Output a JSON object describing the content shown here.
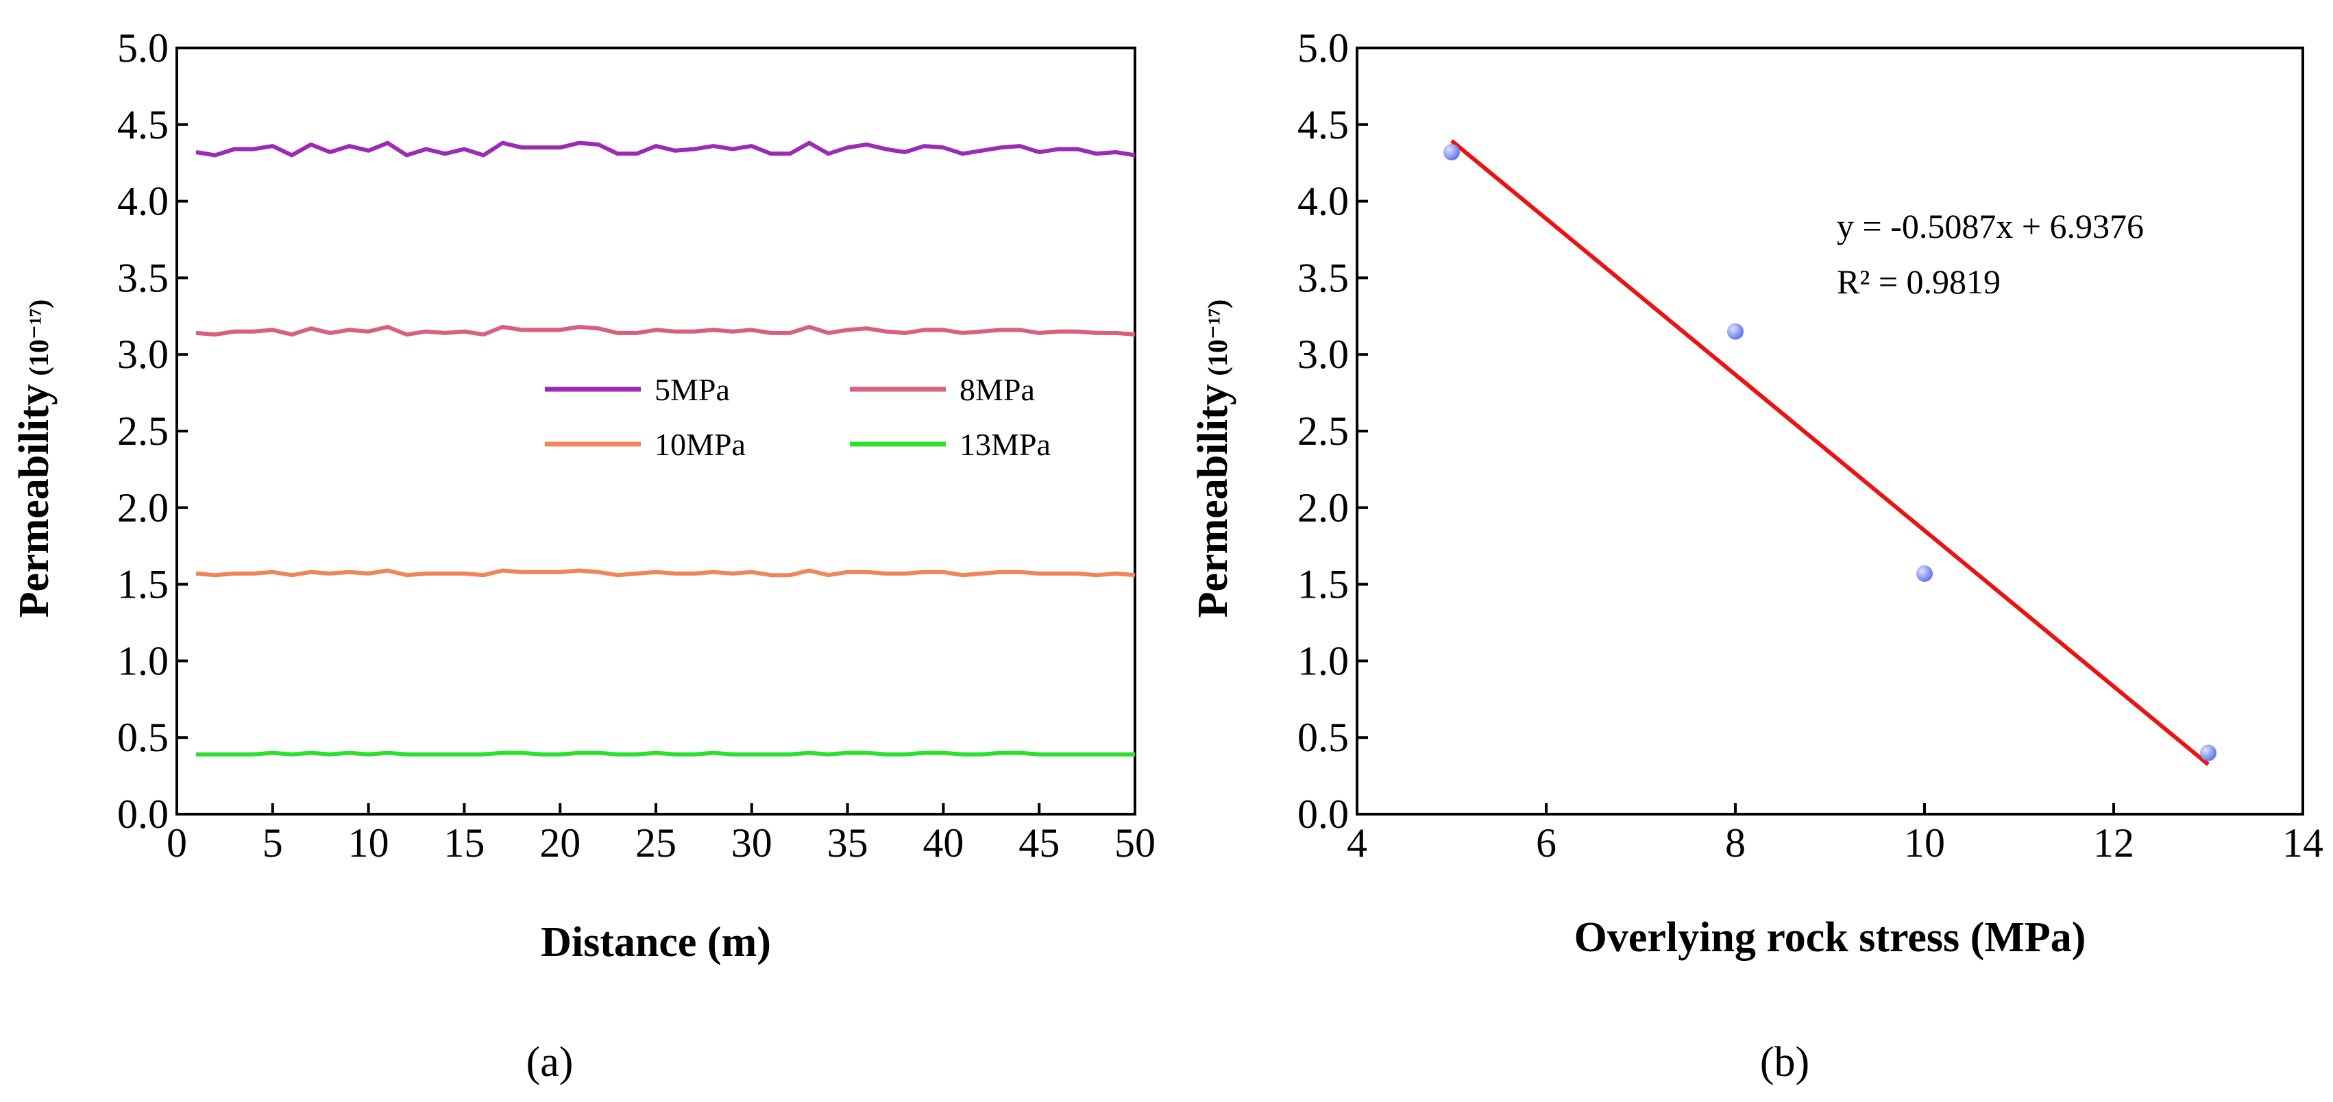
{
  "panels": [
    {
      "label": "(a)"
    },
    {
      "label": "(b)"
    }
  ],
  "chart_data": [
    {
      "type": "line",
      "panel": "a",
      "xlabel": "Distance (m)",
      "ylabel": "Permeability",
      "yunit": "(10⁻¹⁷)",
      "xlim": [
        0,
        50
      ],
      "ylim": [
        0,
        5
      ],
      "xticks": [
        "0",
        "5",
        "10",
        "15",
        "20",
        "25",
        "30",
        "35",
        "40",
        "45",
        "50"
      ],
      "yticks": [
        "0.0",
        "0.5",
        "1.0",
        "1.5",
        "2.0",
        "2.5",
        "3.0",
        "3.5",
        "4.0",
        "4.5",
        "5.0"
      ],
      "x": [
        1,
        2,
        3,
        4,
        5,
        6,
        7,
        8,
        9,
        10,
        11,
        12,
        13,
        14,
        15,
        16,
        17,
        18,
        19,
        20,
        21,
        22,
        23,
        24,
        25,
        26,
        27,
        28,
        29,
        30,
        31,
        32,
        33,
        34,
        35,
        36,
        37,
        38,
        39,
        40,
        41,
        42,
        43,
        44,
        45,
        46,
        47,
        48,
        49,
        50
      ],
      "series": [
        {
          "name": "5MPa",
          "color": "#9b2bb5",
          "values": [
            4.32,
            4.3,
            4.34,
            4.34,
            4.36,
            4.3,
            4.37,
            4.32,
            4.36,
            4.33,
            4.38,
            4.3,
            4.34,
            4.31,
            4.34,
            4.3,
            4.38,
            4.35,
            4.35,
            4.35,
            4.38,
            4.37,
            4.31,
            4.31,
            4.36,
            4.33,
            4.34,
            4.36,
            4.34,
            4.36,
            4.31,
            4.31,
            4.38,
            4.31,
            4.35,
            4.37,
            4.34,
            4.32,
            4.36,
            4.35,
            4.31,
            4.33,
            4.35,
            4.36,
            4.32,
            4.34,
            4.34,
            4.31,
            4.32,
            4.3
          ]
        },
        {
          "name": "8MPa",
          "color": "#d9607a",
          "values": [
            3.14,
            3.13,
            3.15,
            3.15,
            3.16,
            3.13,
            3.17,
            3.14,
            3.16,
            3.15,
            3.18,
            3.13,
            3.15,
            3.14,
            3.15,
            3.13,
            3.18,
            3.16,
            3.16,
            3.16,
            3.18,
            3.17,
            3.14,
            3.14,
            3.16,
            3.15,
            3.15,
            3.16,
            3.15,
            3.16,
            3.14,
            3.14,
            3.18,
            3.14,
            3.16,
            3.17,
            3.15,
            3.14,
            3.16,
            3.16,
            3.14,
            3.15,
            3.16,
            3.16,
            3.14,
            3.15,
            3.15,
            3.14,
            3.14,
            3.13
          ]
        },
        {
          "name": "10MPa",
          "color": "#f0845a",
          "values": [
            1.57,
            1.56,
            1.57,
            1.57,
            1.58,
            1.56,
            1.58,
            1.57,
            1.58,
            1.57,
            1.59,
            1.56,
            1.57,
            1.57,
            1.57,
            1.56,
            1.59,
            1.58,
            1.58,
            1.58,
            1.59,
            1.58,
            1.56,
            1.57,
            1.58,
            1.57,
            1.57,
            1.58,
            1.57,
            1.58,
            1.56,
            1.56,
            1.59,
            1.56,
            1.58,
            1.58,
            1.57,
            1.57,
            1.58,
            1.58,
            1.56,
            1.57,
            1.58,
            1.58,
            1.57,
            1.57,
            1.57,
            1.56,
            1.57,
            1.56
          ]
        },
        {
          "name": "13MPa",
          "color": "#2ee02e",
          "values": [
            0.39,
            0.39,
            0.39,
            0.39,
            0.4,
            0.39,
            0.4,
            0.39,
            0.4,
            0.39,
            0.4,
            0.39,
            0.39,
            0.39,
            0.39,
            0.39,
            0.4,
            0.4,
            0.39,
            0.39,
            0.4,
            0.4,
            0.39,
            0.39,
            0.4,
            0.39,
            0.39,
            0.4,
            0.39,
            0.39,
            0.39,
            0.39,
            0.4,
            0.39,
            0.4,
            0.4,
            0.39,
            0.39,
            0.4,
            0.4,
            0.39,
            0.39,
            0.4,
            0.4,
            0.39,
            0.39,
            0.39,
            0.39,
            0.39,
            0.39
          ]
        }
      ]
    },
    {
      "type": "scatter",
      "panel": "b",
      "xlabel": "Overlying rock stress (MPa)",
      "ylabel": "Permeability",
      "yunit": "(10⁻¹⁷)",
      "xlim": [
        4,
        14
      ],
      "ylim": [
        0,
        5
      ],
      "xticks": [
        "4",
        "6",
        "8",
        "10",
        "12",
        "14"
      ],
      "yticks": [
        "0.0",
        "0.5",
        "1.0",
        "1.5",
        "2.0",
        "2.5",
        "3.0",
        "3.5",
        "4.0",
        "4.5",
        "5.0"
      ],
      "points": {
        "x": [
          5,
          8,
          10,
          13
        ],
        "y": [
          4.32,
          3.15,
          1.57,
          0.4
        ],
        "color": "#5a6ef0"
      },
      "fit": {
        "slope": -0.5087,
        "intercept": 6.9376,
        "x_range": [
          5,
          13
        ],
        "color": "#ee1111"
      },
      "equation": "y = -0.5087x + 6.9376",
      "r_squared": "R² = 0.9819"
    }
  ]
}
